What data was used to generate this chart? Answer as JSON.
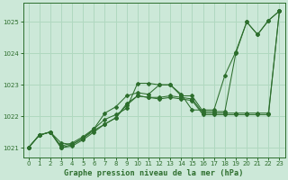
{
  "background_color": "#cce8d8",
  "grid_color": "#b0d8c0",
  "line_color": "#2d6e2d",
  "title": "Graphe pression niveau de la mer (hPa)",
  "xlim": [
    -0.5,
    23.5
  ],
  "ylim": [
    1020.7,
    1025.6
  ],
  "yticks": [
    1021,
    1022,
    1023,
    1024,
    1025
  ],
  "xticks": [
    0,
    1,
    2,
    3,
    4,
    5,
    6,
    7,
    8,
    9,
    10,
    11,
    12,
    13,
    14,
    15,
    16,
    17,
    18,
    19,
    20,
    21,
    22,
    23
  ],
  "s1": [
    1021.0,
    1021.4,
    1021.5,
    1021.15,
    1021.1,
    1021.3,
    1021.6,
    1021.9,
    1022.05,
    1022.25,
    1023.05,
    1023.05,
    1023.0,
    1023.0,
    1022.7,
    1022.2,
    1022.2,
    1022.2,
    1023.3,
    1024.05,
    1025.0,
    1024.6,
    1025.05,
    1025.35
  ],
  "s2": [
    1021.0,
    1021.4,
    1021.5,
    1021.0,
    1021.1,
    1021.3,
    1021.55,
    1021.75,
    1021.95,
    1022.4,
    1022.65,
    1022.6,
    1022.6,
    1022.65,
    1022.6,
    1022.55,
    1022.1,
    1022.1,
    1022.1,
    1022.1,
    1022.1,
    1022.1,
    1022.1,
    1025.35
  ],
  "s3": [
    1021.0,
    1021.4,
    1021.5,
    1021.0,
    1021.05,
    1021.25,
    1021.5,
    1021.75,
    1021.95,
    1022.35,
    1022.65,
    1022.6,
    1022.55,
    1022.6,
    1022.55,
    1022.5,
    1022.05,
    1022.05,
    1022.05,
    1022.05,
    1022.05,
    1022.05,
    1022.05,
    1025.35
  ],
  "s4": [
    1021.0,
    1021.4,
    1021.5,
    1021.05,
    1021.15,
    1021.35,
    1021.6,
    1022.1,
    1022.3,
    1022.65,
    1022.75,
    1022.7,
    1023.0,
    1023.0,
    1022.65,
    1022.65,
    1022.15,
    1022.15,
    1022.15,
    1024.0,
    1025.0,
    1024.6,
    1025.05,
    1025.35
  ]
}
